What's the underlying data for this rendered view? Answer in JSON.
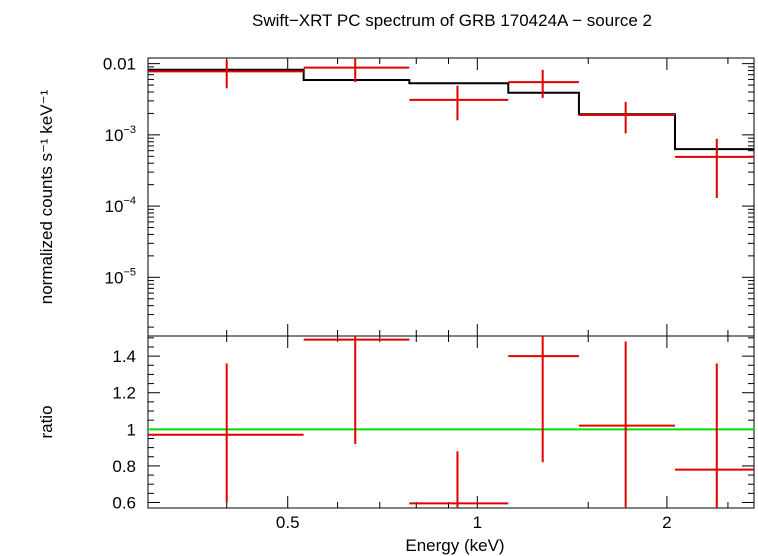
{
  "title": "Swift−XRT PC spectrum of GRB 170424A − source 2",
  "colors": {
    "data": "#e00000",
    "model": "#000000",
    "unity": "#00dd00",
    "frame": "#000000"
  },
  "chart_data": [
    {
      "type": "scatter",
      "panel": "spectrum",
      "ylabel": "normalized counts s⁻¹ keV⁻¹",
      "yscale": "log",
      "ylim": [
        1.5e-06,
        0.012
      ],
      "xscale": "log",
      "xlim": [
        0.3,
        2.75
      ],
      "yticks": [
        {
          "value": 0.01,
          "base": "0.01",
          "exp": ""
        },
        {
          "value": 0.001,
          "base": "10",
          "exp": "−3"
        },
        {
          "value": 0.0001,
          "base": "10",
          "exp": "−4"
        },
        {
          "value": 1e-05,
          "base": "10",
          "exp": "−5"
        }
      ],
      "series": [
        {
          "kind": "data-with-errors",
          "points": [
            {
              "xlo": 0.3,
              "xhi": 0.53,
              "x": 0.4,
              "y": 0.0078,
              "ylo": 0.0045,
              "yhi": 0.0112
            },
            {
              "xlo": 0.53,
              "xhi": 0.78,
              "x": 0.64,
              "y": 0.0088,
              "ylo": 0.0055,
              "yhi": 0.0122
            },
            {
              "xlo": 0.78,
              "xhi": 1.12,
              "x": 0.93,
              "y": 0.0031,
              "ylo": 0.0016,
              "yhi": 0.0049
            },
            {
              "xlo": 1.12,
              "xhi": 1.45,
              "x": 1.27,
              "y": 0.0055,
              "ylo": 0.0033,
              "yhi": 0.0082
            },
            {
              "xlo": 1.45,
              "xhi": 2.06,
              "x": 1.72,
              "y": 0.0019,
              "ylo": 0.00105,
              "yhi": 0.0029
            },
            {
              "xlo": 2.06,
              "xhi": 2.75,
              "x": 2.4,
              "y": 0.00049,
              "ylo": 0.00013,
              "yhi": 0.00088
            }
          ]
        },
        {
          "kind": "model-step",
          "steps": [
            {
              "xlo": 0.3,
              "xhi": 0.53,
              "y": 0.0082
            },
            {
              "xlo": 0.53,
              "xhi": 0.78,
              "y": 0.0059
            },
            {
              "xlo": 0.78,
              "xhi": 1.12,
              "y": 0.0053
            },
            {
              "xlo": 1.12,
              "xhi": 1.45,
              "y": 0.0039
            },
            {
              "xlo": 1.45,
              "xhi": 2.06,
              "y": 0.00195
            },
            {
              "xlo": 2.06,
              "xhi": 2.75,
              "y": 0.00063
            }
          ]
        }
      ]
    },
    {
      "type": "scatter",
      "panel": "ratio",
      "ylabel": "ratio",
      "xlabel": "Energy (keV)",
      "yscale": "linear",
      "ylim": [
        0.57,
        1.51
      ],
      "xscale": "log",
      "xlim": [
        0.3,
        2.75
      ],
      "yticks": [
        "0.6",
        "0.8",
        "1",
        "1.2",
        "1.4"
      ],
      "xticks": [
        "0.5",
        "1",
        "2"
      ],
      "unity": 1.0,
      "series": [
        {
          "kind": "data-with-errors",
          "points": [
            {
              "xlo": 0.3,
              "xhi": 0.53,
              "x": 0.4,
              "y": 0.97,
              "ylo": 0.6,
              "yhi": 1.36
            },
            {
              "xlo": 0.53,
              "xhi": 0.78,
              "x": 0.64,
              "y": 1.49,
              "ylo": 0.92,
              "yhi": 1.51
            },
            {
              "xlo": 0.78,
              "xhi": 1.12,
              "x": 0.93,
              "y": 0.595,
              "ylo": 0.57,
              "yhi": 0.88
            },
            {
              "xlo": 1.12,
              "xhi": 1.45,
              "x": 1.27,
              "y": 1.4,
              "ylo": 0.82,
              "yhi": 1.51
            },
            {
              "xlo": 1.45,
              "xhi": 2.06,
              "x": 1.72,
              "y": 1.02,
              "ylo": 0.57,
              "yhi": 1.48
            },
            {
              "xlo": 2.06,
              "xhi": 2.75,
              "x": 2.4,
              "y": 0.78,
              "ylo": 0.57,
              "yhi": 1.36
            }
          ]
        }
      ]
    }
  ]
}
